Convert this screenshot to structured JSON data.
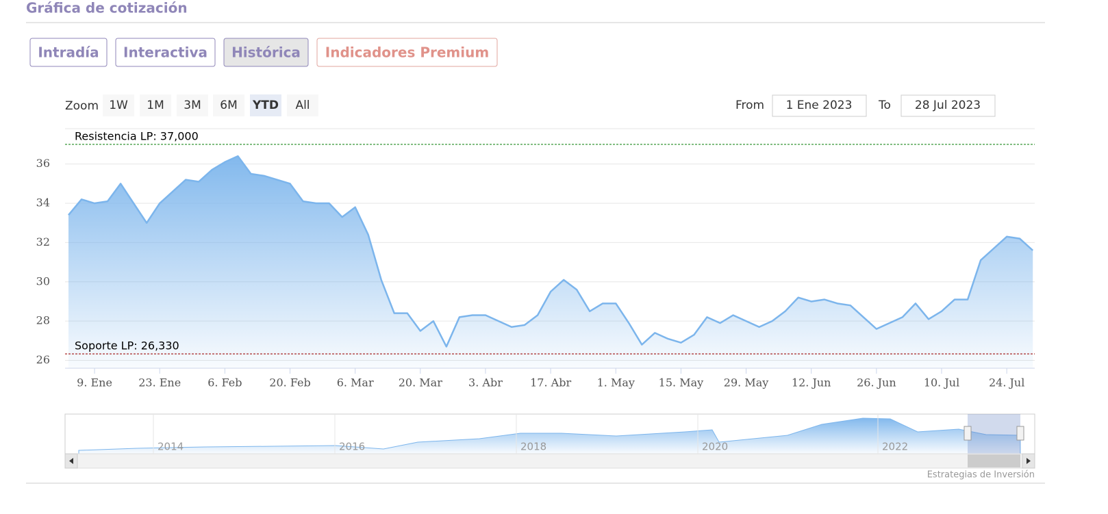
{
  "header": {
    "title": "Gráfica de cotización"
  },
  "tabs": {
    "items": [
      "Intradía",
      "Interactiva",
      "Histórica",
      "Indicadores Premium"
    ],
    "active": 2
  },
  "zoom": {
    "label": "Zoom",
    "buttons": [
      "1W",
      "1M",
      "3M",
      "6M",
      "YTD",
      "All"
    ],
    "active": 4
  },
  "range": {
    "from_label": "From",
    "from": "1 Ene 2023",
    "to_label": "To",
    "to": "28 Jul 2023"
  },
  "chart_data": {
    "type": "line",
    "categories": [
      null,
      null,
      "9. Ene",
      null,
      null,
      null,
      null,
      "23. Ene",
      null,
      null,
      null,
      null,
      "6. Feb",
      null,
      null,
      null,
      null,
      "20. Feb",
      null,
      null,
      null,
      null,
      "6. Mar",
      null,
      null,
      null,
      null,
      "20. Mar",
      null,
      null,
      null,
      null,
      "3. Abr",
      null,
      null,
      null,
      null,
      "17. Abr",
      null,
      null,
      null,
      null,
      "1. May",
      null,
      null,
      null,
      null,
      "15. May",
      null,
      null,
      null,
      null,
      "29. May",
      null,
      null,
      null,
      null,
      "12. Jun",
      null,
      null,
      null,
      null,
      "26. Jun",
      null,
      null,
      null,
      null,
      "10. Jul",
      null,
      null,
      null,
      null,
      "24. Jul",
      null,
      null
    ],
    "series": [
      {
        "color": "#7cb5ec",
        "values": [
          33.4,
          34.2,
          34.0,
          34.1,
          35.0,
          34.0,
          33.0,
          34.0,
          34.6,
          35.2,
          35.1,
          35.7,
          36.1,
          36.4,
          35.5,
          35.4,
          35.2,
          35.0,
          34.1,
          34.0,
          34.0,
          33.3,
          33.8,
          32.4,
          30.1,
          28.4,
          28.4,
          27.5,
          28.0,
          26.7,
          28.2,
          28.3,
          28.3,
          28.0,
          27.7,
          27.8,
          28.3,
          29.5,
          30.1,
          29.6,
          28.5,
          28.9,
          28.9,
          27.9,
          26.8,
          27.4,
          27.1,
          26.9,
          27.3,
          28.2,
          27.9,
          28.3,
          28.0,
          27.7,
          28.0,
          28.5,
          29.2,
          29.0,
          29.1,
          28.9,
          28.8,
          28.2,
          27.6,
          27.9,
          28.2,
          28.9,
          28.1,
          28.5,
          29.1,
          29.1,
          31.1,
          31.7,
          32.3,
          32.2,
          31.6
        ]
      }
    ],
    "ylim": [
      25.6,
      37.8
    ],
    "yticks": [
      26,
      28,
      30,
      32,
      34,
      36
    ],
    "grid": true,
    "plot_lines": [
      {
        "value": 37,
        "label": "Resistencia LP: 37,000",
        "color": "#1f8a1f"
      },
      {
        "value": 26.33,
        "label": "Soporte LP: 26,330",
        "color": "#a01010"
      }
    ]
  },
  "navigator": {
    "labels": [
      "2014",
      "2016",
      "2018",
      "2020",
      "2022"
    ]
  },
  "credit": "Estrategias de Inversión"
}
